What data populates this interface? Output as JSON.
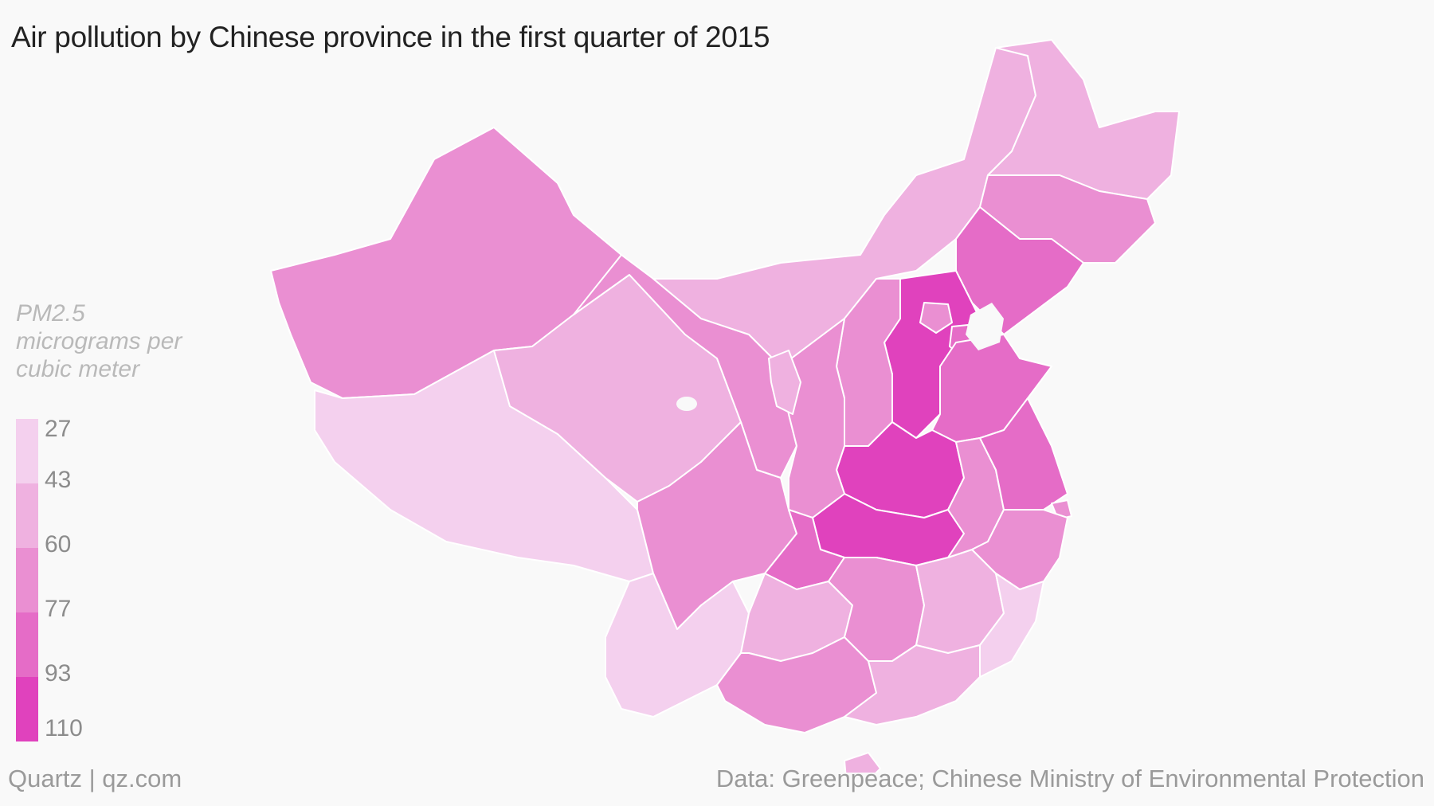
{
  "title": "Air pollution by Chinese province in the first quarter of 2015",
  "legend": {
    "title": "PM2.5 micrograms per cubic meter",
    "ticks": [
      "27",
      "43",
      "60",
      "77",
      "93",
      "110"
    ],
    "colors": [
      "#f4d0ee",
      "#efb1e0",
      "#ea8fd2",
      "#e56cc7",
      "#e042bd"
    ]
  },
  "footer": {
    "left": "Quartz | qz.com",
    "right": "Data: Greenpeace; Chinese Ministry of Environmental Protection"
  },
  "regions": [
    {
      "name": "Xinjiang",
      "color": "#ea8fd2"
    },
    {
      "name": "Tibet",
      "color": "#f4d0ee"
    },
    {
      "name": "Qinghai",
      "color": "#efb1e0"
    },
    {
      "name": "Gansu",
      "color": "#ea8fd2"
    },
    {
      "name": "Inner Mongolia",
      "color": "#efb1e0"
    },
    {
      "name": "Heilongjiang",
      "color": "#efb1e0"
    },
    {
      "name": "Jilin",
      "color": "#ea8fd2"
    },
    {
      "name": "Liaoning",
      "color": "#e56cc7"
    },
    {
      "name": "Hebei",
      "color": "#e042bd"
    },
    {
      "name": "Shanxi",
      "color": "#ea8fd2"
    },
    {
      "name": "Shandong",
      "color": "#e56cc7"
    },
    {
      "name": "Henan",
      "color": "#e042bd"
    },
    {
      "name": "Hubei",
      "color": "#e042bd"
    },
    {
      "name": "Shaanxi",
      "color": "#ea8fd2"
    },
    {
      "name": "Ningxia",
      "color": "#efb1e0"
    },
    {
      "name": "Sichuan",
      "color": "#ea8fd2"
    },
    {
      "name": "Chongqing",
      "color": "#e56cc7"
    },
    {
      "name": "Yunnan",
      "color": "#f4d0ee"
    },
    {
      "name": "Guizhou",
      "color": "#efb1e0"
    },
    {
      "name": "Guangxi",
      "color": "#ea8fd2"
    },
    {
      "name": "Hunan",
      "color": "#ea8fd2"
    },
    {
      "name": "Jiangxi",
      "color": "#efb1e0"
    },
    {
      "name": "Anhui",
      "color": "#ea8fd2"
    },
    {
      "name": "Jiangsu",
      "color": "#e56cc7"
    },
    {
      "name": "Zhejiang",
      "color": "#ea8fd2"
    },
    {
      "name": "Fujian",
      "color": "#f4d0ee"
    },
    {
      "name": "Guangdong",
      "color": "#efb1e0"
    },
    {
      "name": "Hainan",
      "color": "#efb1e0"
    },
    {
      "name": "Beijing",
      "color": "#ea8fd2"
    },
    {
      "name": "Tianjin",
      "color": "#e56cc7"
    },
    {
      "name": "Shanghai",
      "color": "#ea8fd2"
    }
  ]
}
